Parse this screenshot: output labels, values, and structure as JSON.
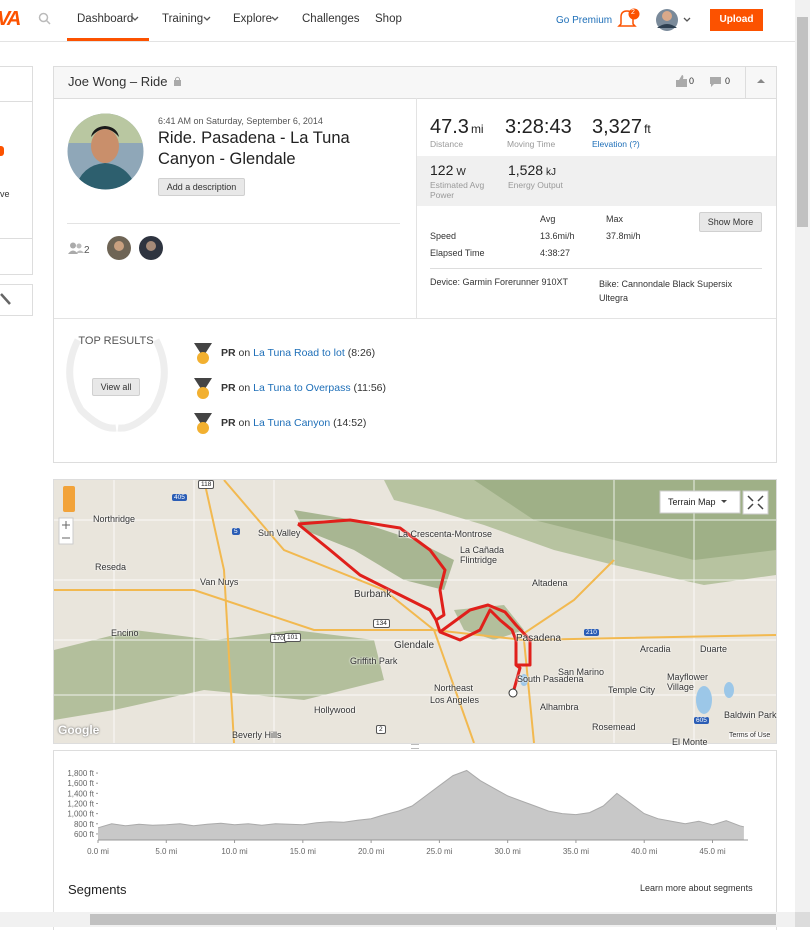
{
  "nav": {
    "logo": "VA",
    "items": [
      "Dashboard",
      "Training",
      "Explore",
      "Challenges",
      "Shop"
    ],
    "premium": "Go Premium",
    "notifications": "2",
    "upload": "Upload"
  },
  "sidebar": {
    "fragment": "ve"
  },
  "activity": {
    "athlete_title": "Joe Wong – Ride",
    "kudos": "0",
    "comments": "0",
    "date": "6:41 AM on Saturday, September 6, 2014",
    "name": "Ride. Pasadena - La Tuna Canyon - Glendale",
    "add_description": "Add a description",
    "group_count": "2",
    "stats": [
      {
        "value": "47.3",
        "unit": "mi",
        "label": "Distance"
      },
      {
        "value": "3:28:43",
        "label": "Moving Time"
      },
      {
        "value": "3,327",
        "unit": "ft",
        "label": "Elevation (?)"
      }
    ],
    "secondary_stats": [
      {
        "value": "122",
        "unit": "W",
        "label": "Estimated Avg Power"
      },
      {
        "value": "1,528",
        "unit": "kJ",
        "label": "Energy Output"
      }
    ],
    "table": {
      "headers": [
        "Avg",
        "Max"
      ],
      "rows": [
        {
          "label": "Speed",
          "avg": "13.6mi/h",
          "max": "37.8mi/h"
        },
        {
          "label": "Elapsed Time",
          "avg": "4:38:27"
        }
      ]
    },
    "show_more": "Show More",
    "device": "Device: Garmin Forerunner 910XT",
    "bike": "Bike: Cannondale Black Supersix Ultegra"
  },
  "top_results": {
    "title": "TOP RESULTS",
    "view_all": "View all",
    "items": [
      {
        "badge": "PR",
        "prefix": "on",
        "segment": "La Tuna Road to lot",
        "time": "(8:26)"
      },
      {
        "badge": "PR",
        "prefix": "on",
        "segment": "La Tuna to Overpass",
        "time": "(11:56)"
      },
      {
        "badge": "PR",
        "prefix": "on",
        "segment": "La Tuna Canyon",
        "time": "(14:52)"
      }
    ]
  },
  "map": {
    "type_control": "Terrain Map",
    "attribution": "Google",
    "terms": "Terms of Use",
    "labels": [
      "Northridge",
      "Sun Valley",
      "Reseda",
      "Van Nuys",
      "Burbank",
      "La Crescenta-Montrose",
      "La Cañada Flintridge",
      "Altadena",
      "Glendale",
      "Pasadena",
      "Encino",
      "Griffith Park",
      "Arcadia",
      "Duarte",
      "San Marino",
      "Temple City",
      "Northeast",
      "Los Angeles",
      "South Pasadena",
      "Alhambra",
      "Hollywood",
      "Beverly Hills",
      "Mayflower Village",
      "Baldwin Park",
      "Rosemead",
      "El Monte"
    ],
    "shields": [
      "405",
      "118",
      "5",
      "170",
      "101",
      "134",
      "2",
      "210",
      "605"
    ]
  },
  "chart_data": {
    "type": "area",
    "color": "#c8c8c8",
    "line_color": "#aaaaaa",
    "x": [
      0,
      1,
      2,
      3,
      4,
      5,
      6,
      7,
      8,
      9,
      10,
      11,
      12,
      13,
      14,
      15,
      16,
      17,
      18,
      19,
      20,
      21,
      22,
      23,
      24,
      25,
      26,
      27,
      28,
      29,
      30,
      31,
      32,
      33,
      34,
      35,
      36,
      37,
      38,
      39,
      40,
      41,
      42,
      43,
      44,
      45,
      46,
      47,
      47.3
    ],
    "values": [
      720,
      800,
      760,
      790,
      770,
      780,
      800,
      760,
      790,
      810,
      780,
      800,
      770,
      800,
      790,
      780,
      820,
      840,
      830,
      870,
      900,
      980,
      1050,
      1150,
      1350,
      1550,
      1750,
      1850,
      1650,
      1500,
      1350,
      1250,
      1150,
      1050,
      1000,
      980,
      1020,
      1150,
      1400,
      1200,
      1000,
      900,
      850,
      800,
      850,
      780,
      860,
      760,
      740
    ],
    "xlim": [
      0,
      47.6
    ],
    "ylim": [
      480,
      1900
    ],
    "xticks": [
      {
        "value": 0,
        "label": "0.0 mi"
      },
      {
        "value": 5,
        "label": "5.0 mi"
      },
      {
        "value": 10,
        "label": "10.0 mi"
      },
      {
        "value": 15,
        "label": "15.0 mi"
      },
      {
        "value": 20,
        "label": "20.0 mi"
      },
      {
        "value": 25,
        "label": "25.0 mi"
      },
      {
        "value": 30,
        "label": "30.0 mi"
      },
      {
        "value": 35,
        "label": "35.0 mi"
      },
      {
        "value": 40,
        "label": "40.0 mi"
      },
      {
        "value": 45,
        "label": "45.0 mi"
      }
    ],
    "yticks": [
      {
        "value": 600,
        "label": "600 ft"
      },
      {
        "value": 800,
        "label": "800 ft"
      },
      {
        "value": 1000,
        "label": "1,000 ft"
      },
      {
        "value": 1200,
        "label": "1,200 ft"
      },
      {
        "value": 1400,
        "label": "1,400 ft"
      },
      {
        "value": 1600,
        "label": "1,600 ft"
      },
      {
        "value": 1800,
        "label": "1,800 ft"
      }
    ]
  },
  "segments": {
    "title": "Segments",
    "learn_more": "Learn more about segments"
  }
}
